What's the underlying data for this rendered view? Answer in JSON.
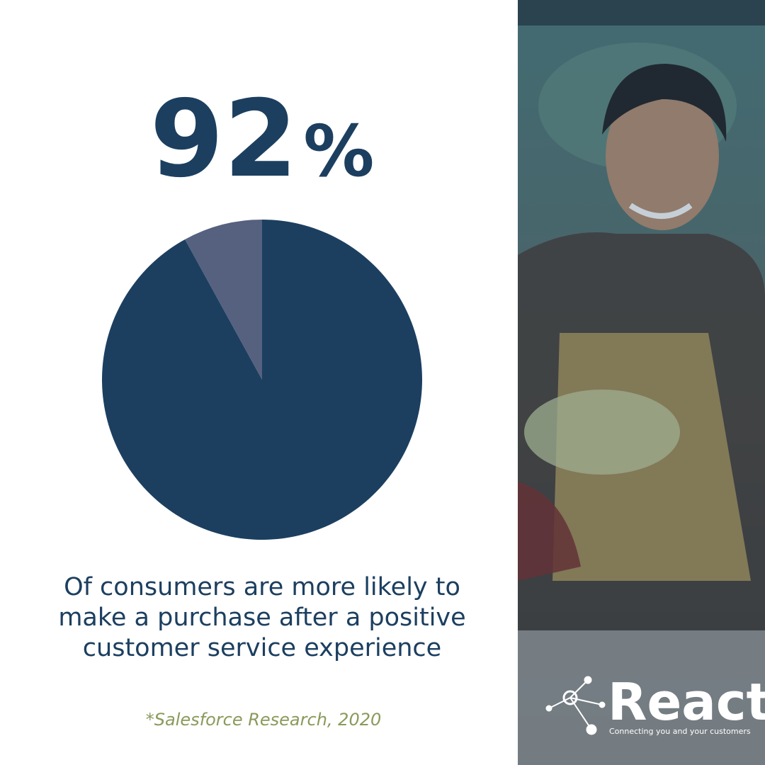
{
  "chart_data": {
    "type": "pie",
    "title": "92%",
    "values": [
      92,
      8
    ],
    "colors": [
      "#1c3f60",
      "#56607f"
    ],
    "caption": [
      "Of consumers are more likely to",
      "make a purchase after a positive",
      "customer service experience"
    ],
    "source": "*Salesforce Research, 2020"
  },
  "brand": {
    "name": "React",
    "tagline": "Connecting you and your customers"
  }
}
